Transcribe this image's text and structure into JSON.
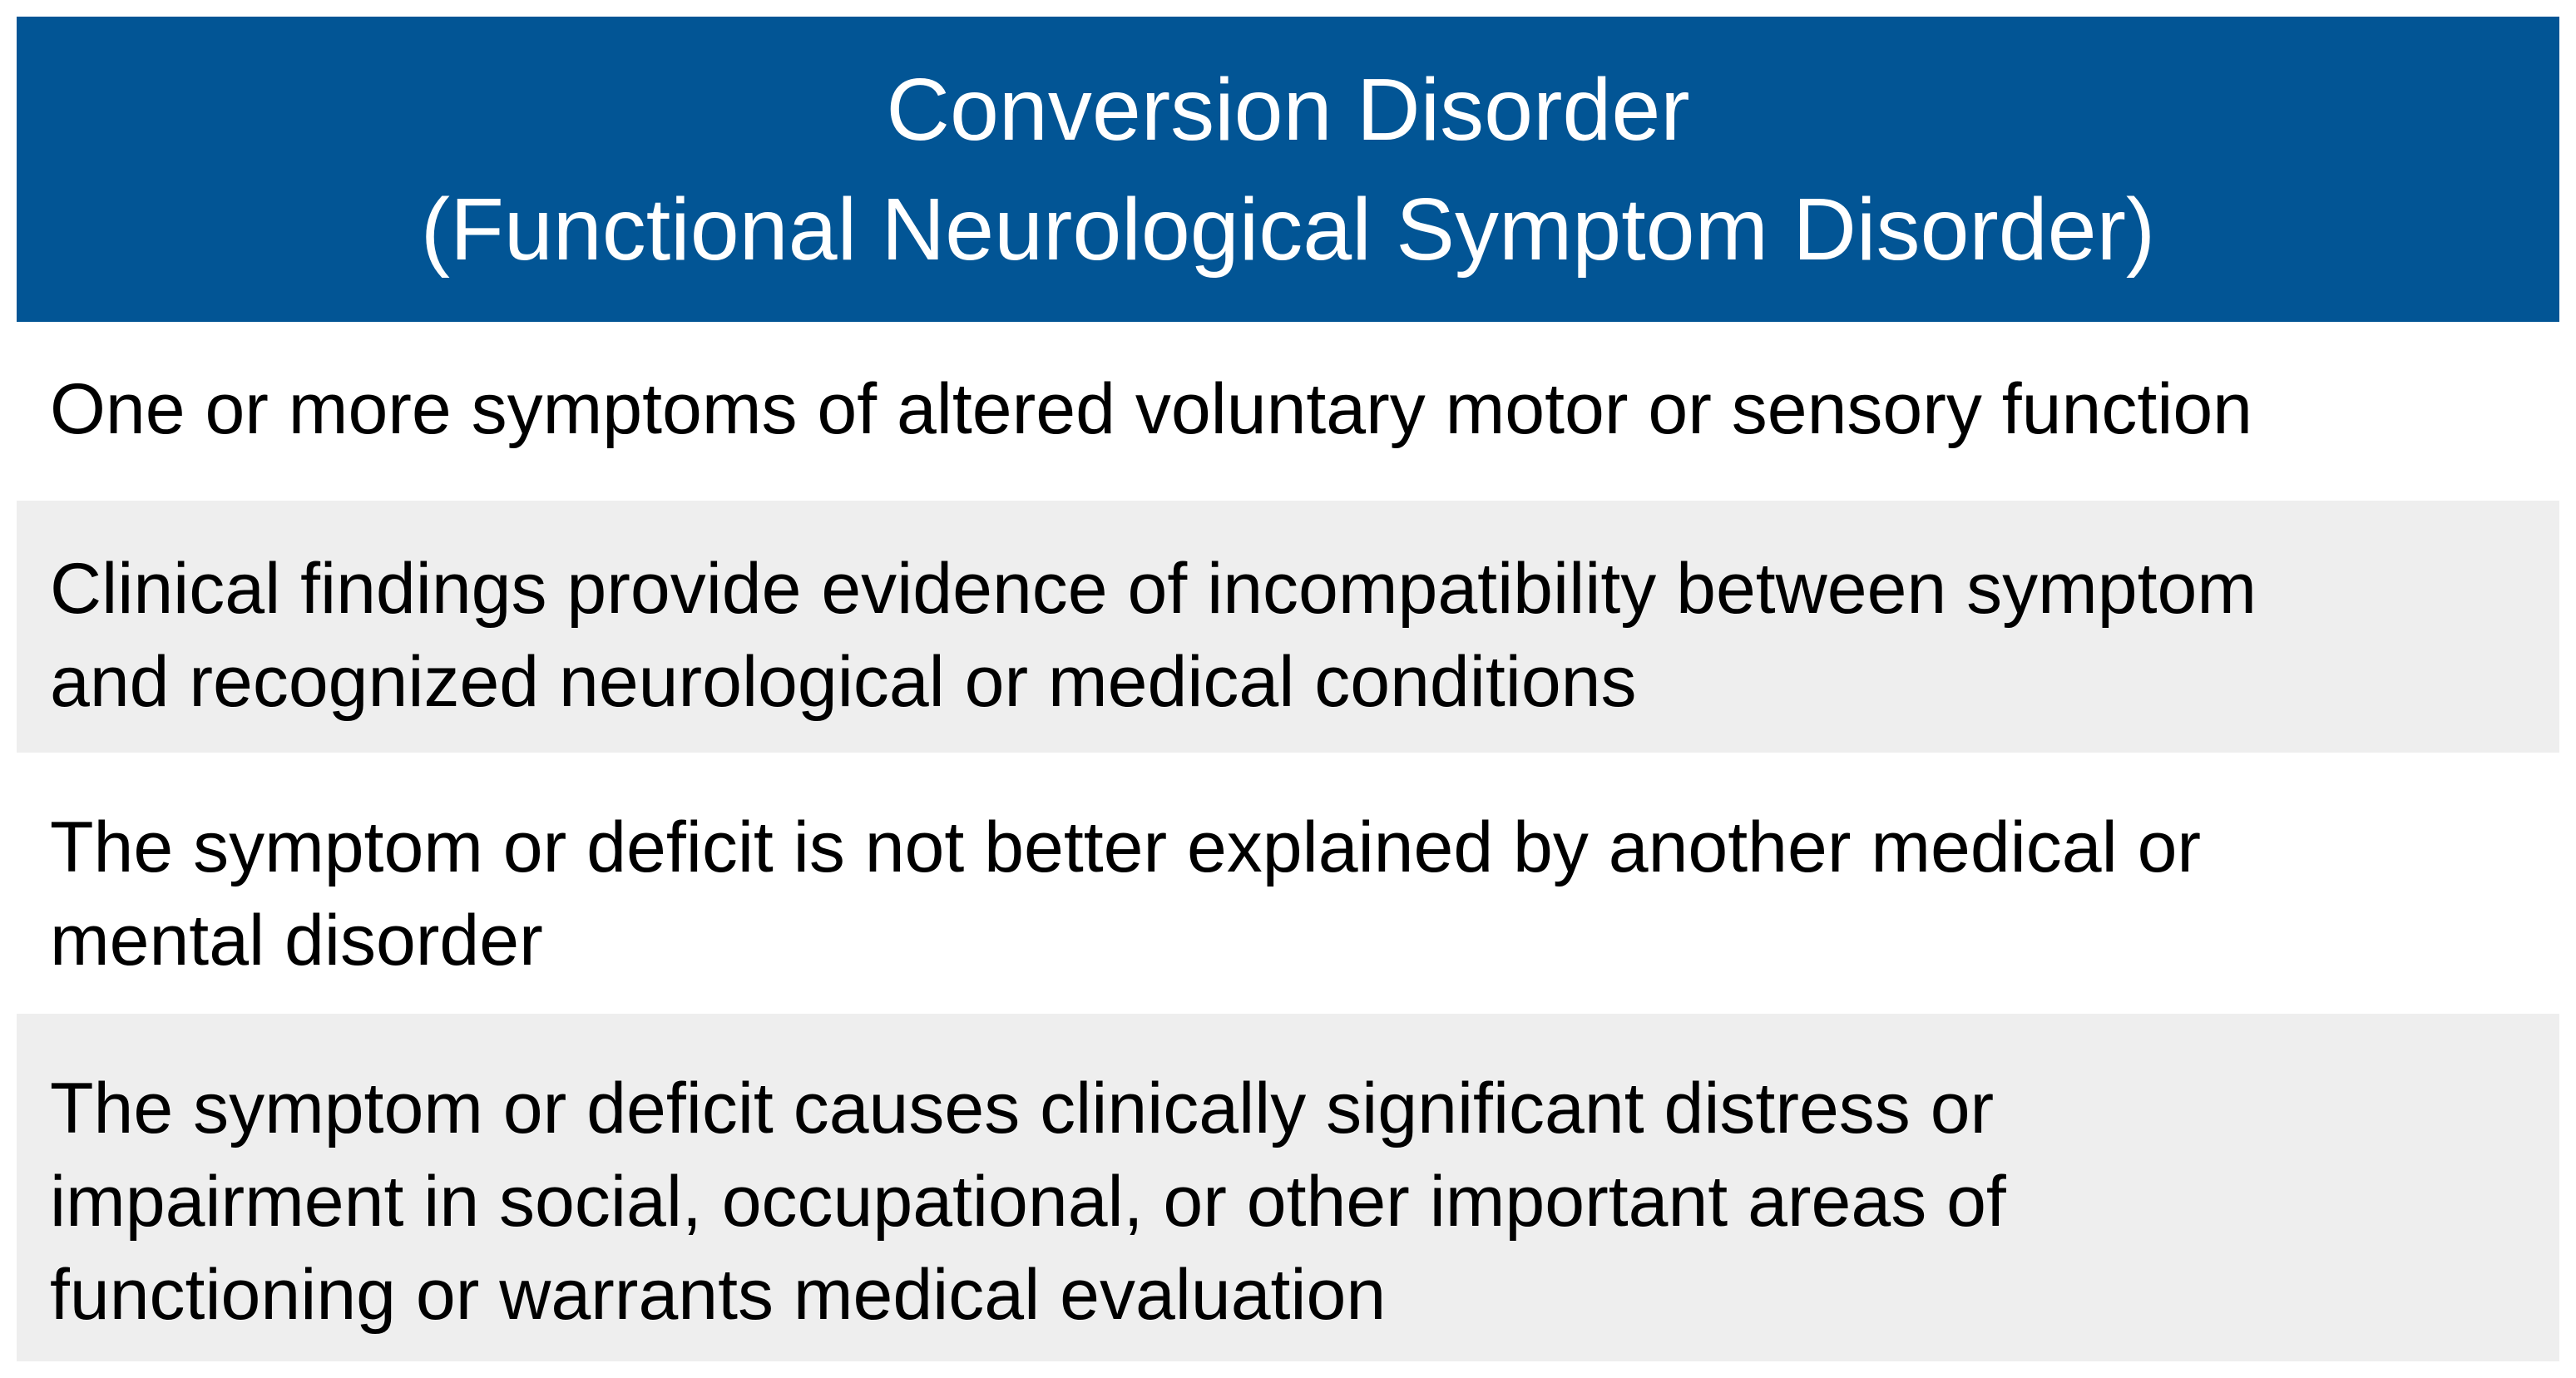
{
  "colors": {
    "header_background": "#025595",
    "header_text": "#ffffff",
    "row_shaded": "#eeeeee",
    "row_plain": "#ffffff",
    "body_text": "#000000"
  },
  "header": {
    "title_line1": "Conversion Disorder",
    "title_line2": "(Functional Neurological Symptom Disorder)"
  },
  "criteria": [
    {
      "lines": [
        "One or more symptoms of altered voluntary motor or sensory function"
      ]
    },
    {
      "lines": [
        "Clinical findings provide evidence of incompatibility between symptom",
        "and recognized neurological or medical conditions"
      ]
    },
    {
      "lines": [
        "The symptom or deficit is not better explained by another medical or",
        "mental disorder"
      ]
    },
    {
      "lines": [
        "The symptom or deficit causes clinically significant distress or",
        "impairment in social, occupational, or other important areas of",
        "functioning or warrants medical evaluation"
      ]
    }
  ]
}
